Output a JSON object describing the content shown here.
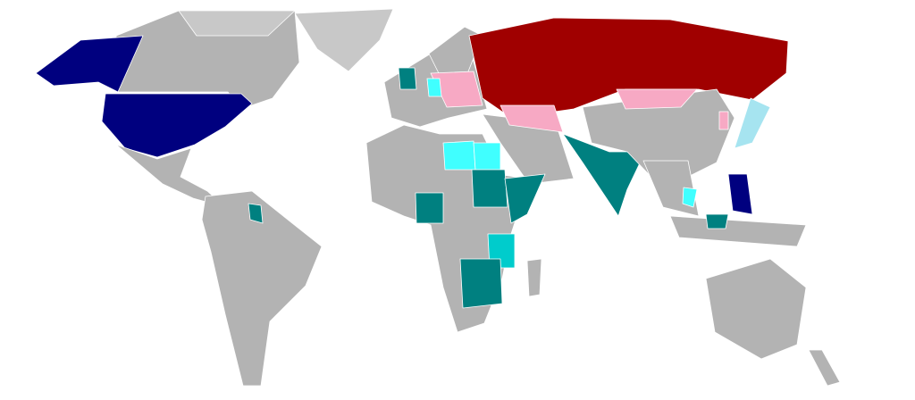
{
  "map": {
    "colors": {
      "background": "#ffffff",
      "default_land": "#b3b3b3",
      "light_land": "#c8c8c8",
      "navy": "#00007f",
      "dark_red": "#a00000",
      "pink": "#f7a9c4",
      "teal": "#008080",
      "cyan": "#00cccc",
      "bright_cyan": "#40ffff",
      "light_blue": "#a6e4f0"
    }
  }
}
